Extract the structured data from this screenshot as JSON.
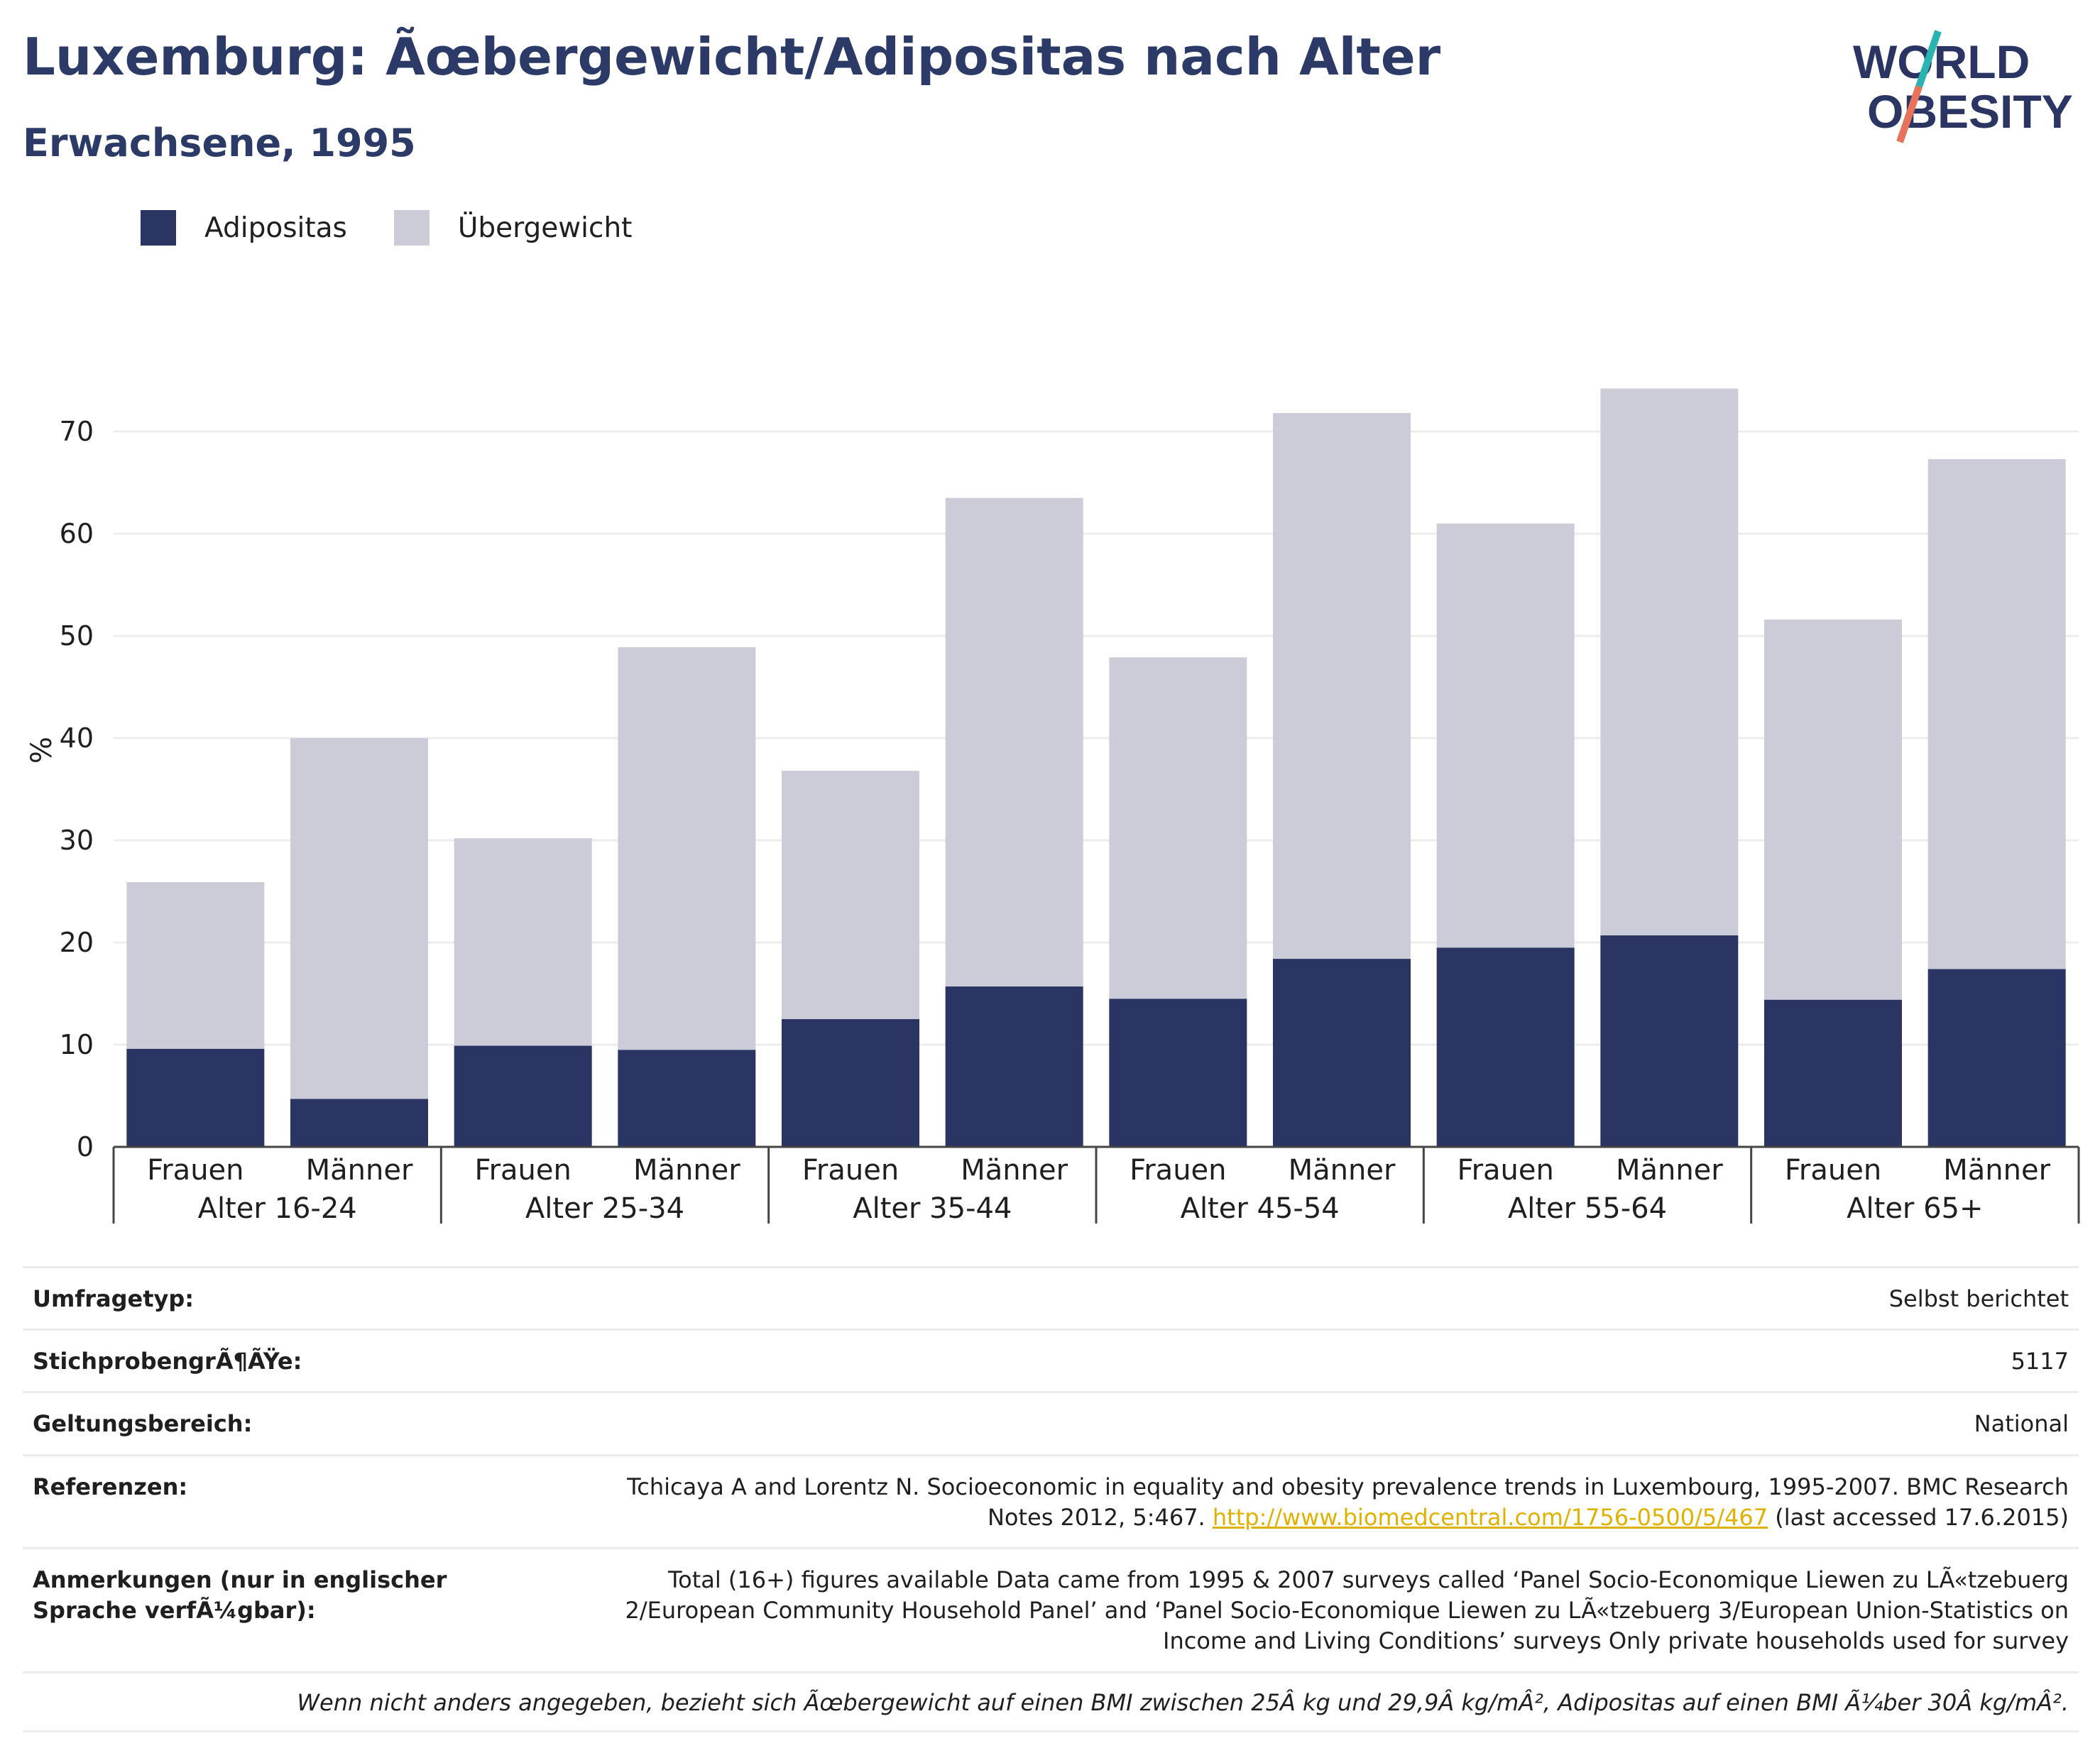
{
  "header": {
    "title": "Luxemburg: Ãœbergewicht/Adipositas nach Alter",
    "subtitle": "Erwachsene, 1995",
    "logo_line1": "WORLD",
    "logo_line2": "OBESITY"
  },
  "colors": {
    "obese": "#2b3563",
    "overweight": "#cbccd8",
    "title": "#2b3a67",
    "grid": "#ececef",
    "link": "#e0b100"
  },
  "chart_data": {
    "type": "bar",
    "stacked": true,
    "ylabel": "%",
    "ylim": [
      0,
      75
    ],
    "yticks": [
      0,
      10,
      20,
      30,
      40,
      50,
      60,
      70
    ],
    "grid": true,
    "legend_position": "top-left",
    "groups": [
      "Alter 16-24",
      "Alter 25-34",
      "Alter 35-44",
      "Alter 45-54",
      "Alter 55-64",
      "Alter 65+"
    ],
    "categories": [
      "Frauen",
      "Männer"
    ],
    "series": [
      {
        "name": "Adipositas",
        "values": [
          [
            9.6,
            4.7
          ],
          [
            9.9,
            9.5
          ],
          [
            12.5,
            15.7
          ],
          [
            14.5,
            18.4
          ],
          [
            19.5,
            20.7
          ],
          [
            14.4,
            17.4
          ]
        ]
      },
      {
        "name": "Übergewicht",
        "values": [
          [
            16.3,
            35.3
          ],
          [
            20.3,
            39.4
          ],
          [
            24.3,
            47.8
          ],
          [
            33.4,
            53.4
          ],
          [
            41.5,
            53.5
          ],
          [
            37.2,
            49.9
          ]
        ]
      }
    ]
  },
  "info": {
    "survey_type_label": "Umfragetyp:",
    "survey_type_value": "Selbst berichtet",
    "sample_size_label": "StichprobengrÃ¶ÃŸe:",
    "sample_size_value": "5117",
    "coverage_label": "Geltungsbereich:",
    "coverage_value": "National",
    "references_label": "Referenzen:",
    "references_text": "Tchicaya A and Lorentz N. Socioeconomic in equality and obesity prevalence trends in Luxembourg, 1995-2007. BMC Research Notes 2012, 5:467.",
    "references_link": "http://www.biomedcentral.com/1756-0500/5/467",
    "references_suffix": "(last accessed 17.6.2015)",
    "notes_label": "Anmerkungen (nur in englischer Sprache verfÃ¼gbar):",
    "notes_value": "Total (16+) figures available Data came from 1995 & 2007 surveys called ‘Panel Socio-Economique Liewen zu LÃ«tzebuerg 2/European Community Household Panel’ and ‘Panel Socio-Economique Liewen zu LÃ«tzebuerg 3/European Union-Statistics on Income and Living Conditions’ surveys Only private households used for survey",
    "footnote": "Wenn nicht anders angegeben, bezieht sich Ãœbergewicht auf einen BMI zwischen 25Â kg und 29,9Â kg/mÂ², Adipositas auf einen BMI Ã¼ber 30Â kg/mÂ²."
  }
}
